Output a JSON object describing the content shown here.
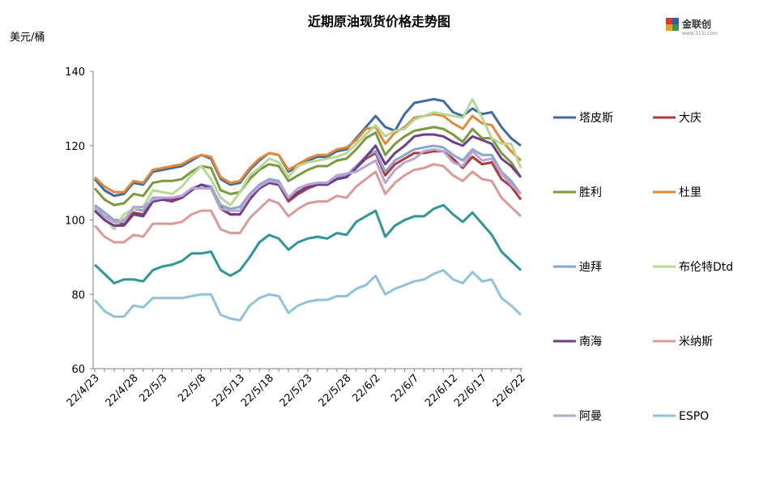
{
  "chart_data": {
    "type": "line",
    "title": "近期原油现货价格走势图",
    "ylabel": "美元/桶",
    "ylim": [
      60,
      140
    ],
    "yticks": [
      60,
      80,
      100,
      120,
      140
    ],
    "xtick_labels": [
      "22/4/23",
      "22/4/28",
      "22/5/3",
      "22/5/8",
      "22/5/13",
      "22/5/18",
      "22/5/23",
      "22/5/28",
      "22/6/2",
      "22/6/7",
      "22/6/12",
      "22/6/17",
      "22/6/22"
    ],
    "x": [
      "4/22",
      "4/23",
      "4/25",
      "4/26",
      "4/27",
      "4/28",
      "4/29",
      "5/2",
      "5/3",
      "5/4",
      "5/5",
      "5/6",
      "5/9",
      "5/10",
      "5/11",
      "5/12",
      "5/13",
      "5/16",
      "5/17",
      "5/18",
      "5/19",
      "5/20",
      "5/23",
      "5/24",
      "5/25",
      "5/26",
      "5/27",
      "5/30",
      "5/31",
      "6/1",
      "6/2",
      "6/3",
      "6/6",
      "6/7",
      "6/8",
      "6/9",
      "6/10",
      "6/13",
      "6/14",
      "6/15",
      "6/16",
      "6/17",
      "6/20",
      "6/21",
      "6/22"
    ],
    "legend_position": "right",
    "series": [
      {
        "name": "塔皮斯",
        "color": "#3f6aa6",
        "values": [
          111.0,
          108.0,
          106.5,
          107.0,
          110.0,
          109.5,
          113.0,
          113.5,
          114.0,
          114.5,
          116.0,
          117.5,
          116.5,
          111.0,
          109.5,
          110.0,
          113.5,
          116.0,
          118.0,
          117.5,
          113.0,
          114.5,
          116.0,
          117.0,
          117.0,
          118.5,
          119.0,
          122.0,
          125.0,
          128.0,
          125.0,
          124.0,
          128.5,
          131.5,
          132.0,
          132.5,
          132.0,
          129.0,
          128.0,
          130.0,
          128.5,
          129.0,
          125.0,
          122.0,
          120.0
        ]
      },
      {
        "name": "大庆",
        "color": "#b03a3a",
        "values": [
          103.0,
          101.0,
          99.5,
          99.0,
          102.0,
          101.5,
          105.0,
          105.5,
          105.0,
          106.0,
          108.0,
          109.5,
          109.0,
          103.5,
          101.5,
          101.5,
          105.5,
          108.5,
          110.0,
          109.5,
          105.0,
          107.0,
          108.5,
          109.5,
          109.5,
          111.0,
          111.5,
          114.0,
          116.5,
          118.0,
          112.0,
          115.0,
          116.5,
          118.0,
          118.0,
          118.5,
          118.5,
          116.5,
          114.0,
          117.0,
          115.0,
          115.5,
          111.0,
          109.0,
          105.5
        ]
      },
      {
        "name": "胜利",
        "color": "#7a9a3c",
        "values": [
          108.5,
          105.5,
          104.0,
          104.5,
          107.0,
          106.5,
          110.0,
          110.5,
          110.5,
          111.0,
          113.0,
          114.5,
          114.0,
          108.0,
          107.0,
          107.5,
          111.0,
          113.5,
          115.0,
          114.5,
          110.5,
          112.0,
          113.5,
          114.5,
          114.5,
          116.0,
          116.5,
          119.0,
          122.0,
          123.5,
          117.5,
          120.5,
          122.5,
          124.0,
          124.5,
          125.0,
          124.5,
          123.0,
          121.0,
          124.5,
          122.0,
          122.0,
          118.0,
          115.5,
          111.5
        ]
      },
      {
        "name": "杜里",
        "color": "#e2883a",
        "values": [
          111.5,
          109.0,
          107.5,
          107.5,
          110.5,
          110.0,
          113.5,
          114.0,
          114.5,
          115.0,
          116.5,
          117.5,
          117.0,
          111.5,
          110.0,
          110.5,
          114.0,
          116.5,
          118.0,
          117.5,
          113.5,
          115.0,
          116.5,
          117.5,
          117.5,
          119.0,
          119.5,
          121.5,
          124.5,
          125.0,
          120.5,
          123.5,
          125.0,
          127.5,
          128.0,
          128.5,
          128.0,
          126.0,
          124.5,
          128.0,
          126.0,
          125.5,
          121.5,
          118.5,
          116.0
        ]
      },
      {
        "name": "迪拜",
        "color": "#8aa6cf",
        "values": [
          104.0,
          102.0,
          100.0,
          100.0,
          103.0,
          102.5,
          106.0,
          106.0,
          106.0,
          106.5,
          108.5,
          109.5,
          109.0,
          104.0,
          103.0,
          103.5,
          107.0,
          109.5,
          111.0,
          110.5,
          106.0,
          108.5,
          109.5,
          110.0,
          110.0,
          111.5,
          112.0,
          114.5,
          117.0,
          118.5,
          113.0,
          116.0,
          117.5,
          119.0,
          119.5,
          120.0,
          119.5,
          117.5,
          116.0,
          119.0,
          117.5,
          117.5,
          113.0,
          110.5,
          107.0
        ]
      },
      {
        "name": "布伦特Dtd",
        "color": "#b8d898",
        "values": [
          103.0,
          100.5,
          97.5,
          101.5,
          103.0,
          103.5,
          108.0,
          107.5,
          107.0,
          109.0,
          112.0,
          114.5,
          111.0,
          106.0,
          104.0,
          107.5,
          112.0,
          114.0,
          116.5,
          115.5,
          111.5,
          114.5,
          115.5,
          116.0,
          116.5,
          117.0,
          118.0,
          120.5,
          123.0,
          125.5,
          122.5,
          124.0,
          124.5,
          127.0,
          128.0,
          129.0,
          128.5,
          128.0,
          127.5,
          132.5,
          127.5,
          122.0,
          120.5,
          120.5,
          114.0
        ]
      },
      {
        "name": "南海",
        "color": "#6b3f8c",
        "values": [
          102.5,
          100.0,
          98.5,
          98.5,
          101.5,
          101.0,
          105.0,
          105.5,
          105.5,
          106.0,
          108.0,
          109.5,
          108.5,
          103.0,
          101.5,
          101.5,
          106.0,
          108.5,
          110.0,
          109.5,
          105.5,
          107.5,
          109.0,
          109.5,
          109.5,
          111.0,
          111.5,
          114.0,
          117.0,
          120.0,
          115.0,
          118.0,
          120.0,
          122.5,
          123.0,
          123.0,
          122.5,
          121.0,
          120.0,
          122.5,
          121.5,
          120.5,
          116.5,
          114.5,
          111.5
        ]
      },
      {
        "name": "米纳斯",
        "color": "#d99a98",
        "values": [
          98.5,
          95.5,
          94.0,
          94.0,
          96.0,
          95.5,
          99.0,
          99.0,
          99.0,
          99.5,
          101.5,
          102.5,
          102.5,
          97.5,
          96.5,
          96.5,
          100.5,
          103.0,
          105.5,
          104.5,
          101.0,
          103.0,
          104.5,
          105.0,
          105.0,
          106.5,
          106.0,
          109.0,
          111.0,
          113.0,
          107.0,
          110.0,
          112.0,
          113.5,
          114.0,
          115.0,
          114.5,
          112.0,
          110.5,
          113.0,
          111.0,
          110.5,
          106.0,
          103.5,
          101.0
        ]
      },
      {
        "name": "阿曼",
        "color": "#b9a3d3",
        "values": [
          103.5,
          101.0,
          99.5,
          99.5,
          103.5,
          103.5,
          105.5,
          106.0,
          106.0,
          106.5,
          108.5,
          108.5,
          108.5,
          103.0,
          102.5,
          102.5,
          106.5,
          109.0,
          110.5,
          110.0,
          106.0,
          108.5,
          109.5,
          110.0,
          110.0,
          112.0,
          112.5,
          113.0,
          114.5,
          116.0,
          110.0,
          113.5,
          115.5,
          116.5,
          118.5,
          119.0,
          118.5,
          115.5,
          114.5,
          118.5,
          116.0,
          116.5,
          112.5,
          109.5,
          107.0
        ]
      },
      {
        "name": "ESPO",
        "color": "#8fc3d9",
        "values": [
          78.5,
          75.5,
          74.0,
          74.0,
          77.0,
          76.5,
          79.0,
          79.0,
          79.0,
          79.0,
          79.5,
          80.0,
          80.0,
          74.5,
          73.5,
          73.0,
          77.0,
          79.0,
          80.0,
          79.5,
          75.0,
          77.0,
          78.0,
          78.5,
          78.5,
          79.5,
          79.5,
          81.5,
          82.5,
          85.0,
          80.0,
          81.5,
          82.5,
          83.5,
          84.0,
          85.5,
          86.5,
          84.0,
          83.0,
          86.0,
          83.5,
          84.0,
          79.0,
          77.0,
          74.5
        ]
      },
      {
        "name": "",
        "color": "#2f9696",
        "values": [
          88.0,
          85.5,
          83.0,
          84.0,
          84.0,
          83.5,
          86.5,
          87.5,
          88.0,
          89.0,
          91.0,
          91.0,
          91.5,
          86.5,
          85.0,
          86.5,
          90.0,
          94.0,
          96.0,
          95.0,
          92.0,
          94.0,
          95.0,
          95.5,
          95.0,
          96.5,
          96.0,
          99.5,
          101.0,
          102.5,
          95.5,
          98.5,
          100.0,
          101.0,
          101.0,
          103.0,
          104.0,
          101.5,
          99.5,
          102.0,
          99.0,
          96.0,
          91.5,
          89.0,
          86.5
        ]
      }
    ],
    "legend": [
      "塔皮斯",
      "大庆",
      "胜利",
      "杜里",
      "迪拜",
      "布伦特Dtd",
      "南海",
      "米纳斯",
      "阿曼",
      "ESPO"
    ]
  },
  "logo": {
    "name": "金联创",
    "sub": "www.315i.com"
  }
}
